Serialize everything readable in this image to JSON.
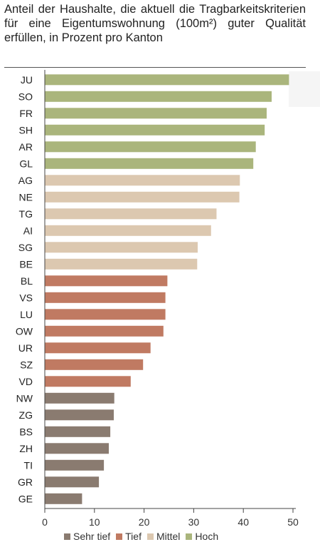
{
  "chart_data": {
    "type": "bar",
    "orientation": "horizontal",
    "title": "Anteil der Haushalte, die aktuell die Tragbarkeitskriterien für eine Eigentumswohnung (100m²) guter Qualität erfüllen, in Prozent pro Kanton",
    "xlabel": "",
    "ylabel": "",
    "xlim": [
      0,
      50
    ],
    "xticks": [
      0,
      10,
      20,
      30,
      40,
      50
    ],
    "grid": false,
    "legend_position": "bottom",
    "categories": [
      "JU",
      "SO",
      "FR",
      "SH",
      "AR",
      "GL",
      "AG",
      "NE",
      "TG",
      "AI",
      "SG",
      "BE",
      "BL",
      "VS",
      "LU",
      "OW",
      "UR",
      "SZ",
      "VD",
      "NW",
      "ZG",
      "BS",
      "ZH",
      "TI",
      "GR",
      "GE"
    ],
    "values": [
      49.2,
      45.7,
      44.7,
      44.3,
      42.5,
      42.0,
      39.3,
      39.2,
      34.6,
      33.5,
      30.8,
      30.7,
      24.7,
      24.3,
      24.3,
      23.9,
      21.3,
      19.8,
      17.3,
      14.0,
      13.9,
      13.2,
      12.9,
      11.9,
      10.9,
      7.5
    ],
    "groups": [
      "Hoch",
      "Hoch",
      "Hoch",
      "Hoch",
      "Hoch",
      "Hoch",
      "Mittel",
      "Mittel",
      "Mittel",
      "Mittel",
      "Mittel",
      "Mittel",
      "Tief",
      "Tief",
      "Tief",
      "Tief",
      "Tief",
      "Tief",
      "Tief",
      "Sehr tief",
      "Sehr tief",
      "Sehr tief",
      "Sehr tief",
      "Sehr tief",
      "Sehr tief",
      "Sehr tief"
    ],
    "legend": [
      {
        "name": "Sehr tief",
        "color": "#8a7b70"
      },
      {
        "name": "Tief",
        "color": "#c07a62"
      },
      {
        "name": "Mittel",
        "color": "#dcc8b0"
      },
      {
        "name": "Hoch",
        "color": "#aab57c"
      }
    ]
  }
}
